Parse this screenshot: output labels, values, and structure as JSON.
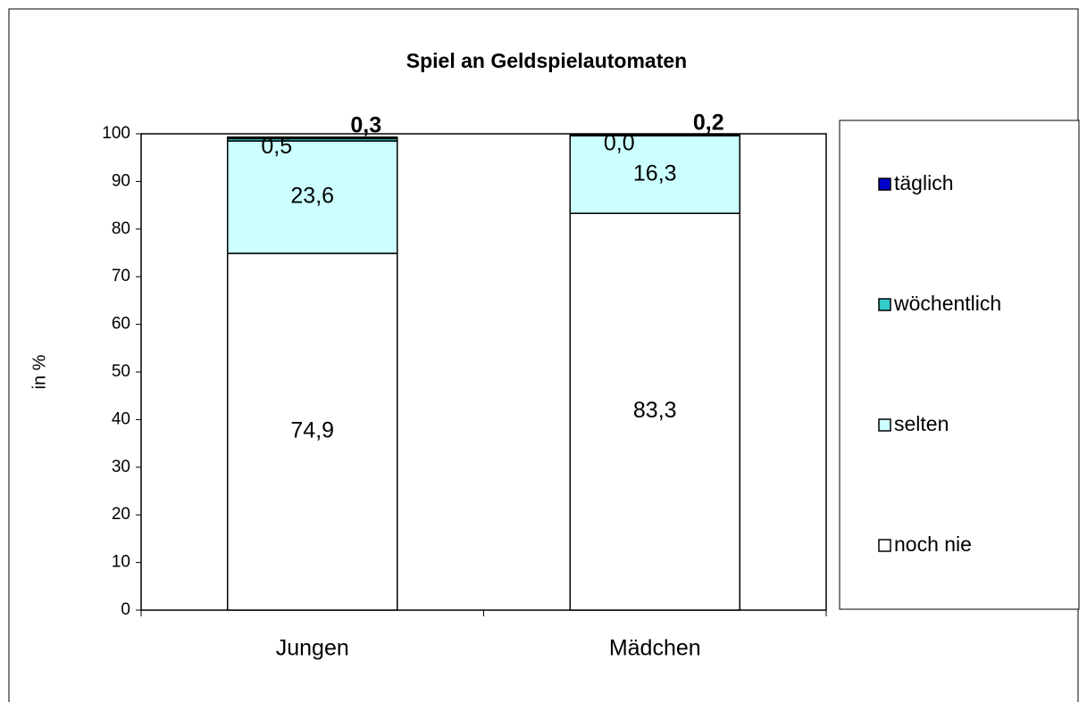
{
  "chart_data": {
    "type": "stacked_bar",
    "title": "Spiel an Geldspielautomaten",
    "y_label": "in %",
    "categories": [
      "Jungen",
      "Mädchen"
    ],
    "series": [
      {
        "name": "noch nie",
        "color": "#ffffff",
        "values": [
          74.9,
          83.3
        ],
        "value_labels": [
          "74,9",
          "83,3"
        ]
      },
      {
        "name": "selten",
        "color": "#ccffff",
        "values": [
          23.6,
          16.3
        ],
        "value_labels": [
          "23,6",
          "16,3"
        ]
      },
      {
        "name": "wöchentlich",
        "color": "#33cccc",
        "values": [
          0.5,
          0.0
        ],
        "value_labels": [
          "0,5",
          "0,0"
        ]
      },
      {
        "name": "täglich",
        "color": "#0000cc",
        "values": [
          0.3,
          0.2
        ],
        "value_labels": [
          "0,3",
          "0,2"
        ]
      }
    ],
    "ylim": [
      0,
      100
    ],
    "yticks": [
      0,
      10,
      20,
      30,
      40,
      50,
      60,
      70,
      80,
      90,
      100
    ],
    "legend": "right"
  }
}
